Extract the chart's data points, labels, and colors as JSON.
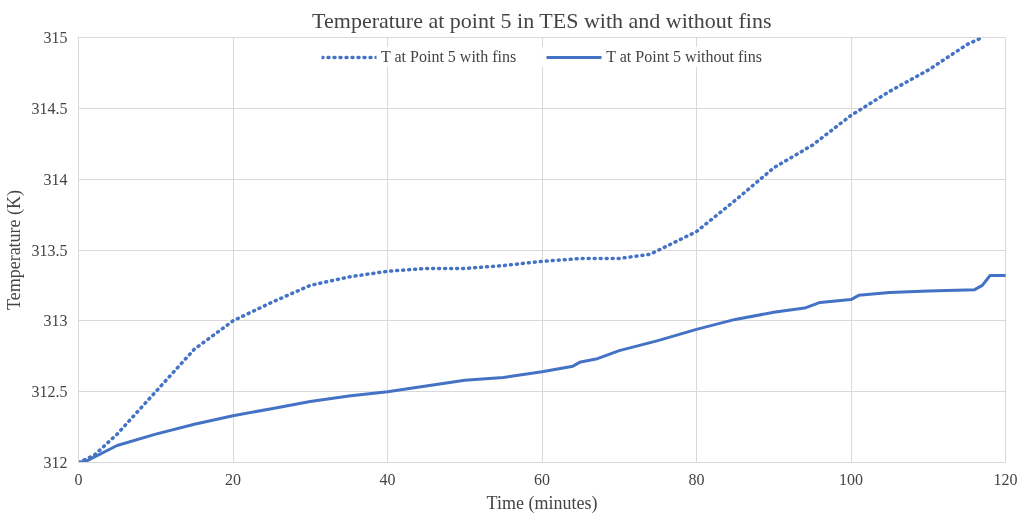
{
  "chart_data": {
    "type": "line",
    "title": "Temperature at point 5 in TES with and without fins",
    "xlabel": "Time (minutes)",
    "ylabel": "Temperature (K)",
    "xlim": [
      0,
      120
    ],
    "xticks": [
      0,
      20,
      40,
      60,
      80,
      100,
      120
    ],
    "ylim": [
      312,
      315
    ],
    "yticks": [
      312,
      312.5,
      313,
      313.5,
      314,
      314.5,
      315
    ],
    "grid": true,
    "legend": "top",
    "series": [
      {
        "name": "T at Point 5 with fins",
        "color": "#4472c4",
        "line_style": "dotted",
        "x": [
          0,
          2,
          5,
          10,
          15,
          20,
          25,
          30,
          35,
          40,
          45,
          50,
          55,
          60,
          65,
          70,
          74,
          80,
          85,
          90,
          95,
          100,
          105,
          110,
          115,
          117
        ],
        "values": [
          312,
          312.05,
          312.2,
          312.5,
          312.8,
          313.0,
          313.13,
          313.25,
          313.31,
          313.35,
          313.37,
          313.37,
          313.39,
          313.42,
          313.44,
          313.44,
          313.47,
          313.63,
          313.85,
          314.08,
          314.24,
          314.45,
          314.62,
          314.77,
          314.95,
          315.0
        ]
      },
      {
        "name": "T at Point 5 without fins",
        "color": "#4472c4",
        "line_style": "solid",
        "x": [
          0,
          1,
          5,
          10,
          15,
          20,
          25,
          30,
          35,
          40,
          45,
          50,
          55,
          60,
          64,
          65,
          67,
          70,
          75,
          80,
          85,
          90,
          94,
          96,
          100,
          101,
          105,
          110,
          116,
          117,
          118,
          120
        ],
        "values": [
          312,
          312.01,
          312.12,
          312.2,
          312.27,
          312.33,
          312.38,
          312.43,
          312.47,
          312.5,
          312.54,
          312.58,
          312.6,
          312.64,
          312.68,
          312.71,
          312.73,
          312.79,
          312.86,
          312.94,
          313.01,
          313.06,
          313.09,
          313.13,
          313.15,
          313.18,
          313.2,
          313.21,
          313.22,
          313.25,
          313.32,
          313.32
        ]
      }
    ]
  }
}
